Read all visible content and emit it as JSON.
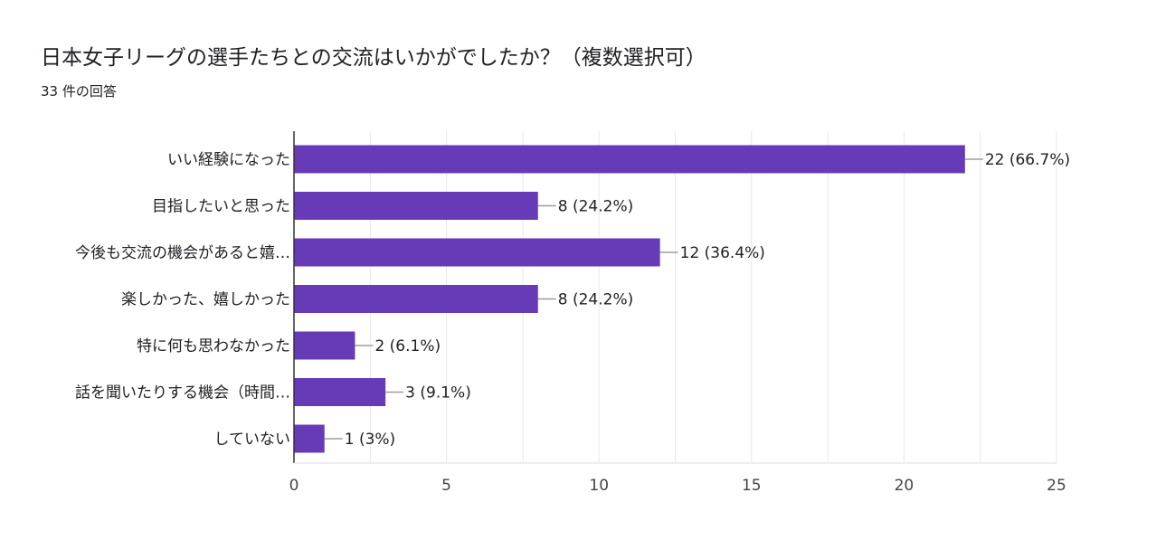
{
  "header": {
    "title": "日本女子リーグの選手たちとの交流はいかがでしたか？（複数選択可）",
    "response_count": "33 件の回答"
  },
  "chart_data": {
    "type": "bar",
    "orientation": "horizontal",
    "categories": [
      "いい経験になった",
      "目指したいと思った",
      "今後も交流の機会があると嬉…",
      "楽しかった、嬉しかった",
      "特に何も思わなかった",
      "話を聞いたりする機会（時間…",
      "していない"
    ],
    "values": [
      22,
      8,
      12,
      8,
      2,
      3,
      1
    ],
    "value_labels": [
      "22 (66.7%)",
      "8 (24.2%)",
      "12 (36.4%)",
      "8 (24.2%)",
      "2 (6.1%)",
      "3 (9.1%)",
      "1 (3%)"
    ],
    "xlim": [
      0,
      25
    ],
    "xticks": [
      "0",
      "5",
      "10",
      "15",
      "20",
      "25"
    ],
    "grid": true,
    "bar_color": "#673ab7",
    "gridline_color": "#e8e8e8",
    "axis_color": "#333333",
    "leader_color": "#9e9e9e"
  }
}
